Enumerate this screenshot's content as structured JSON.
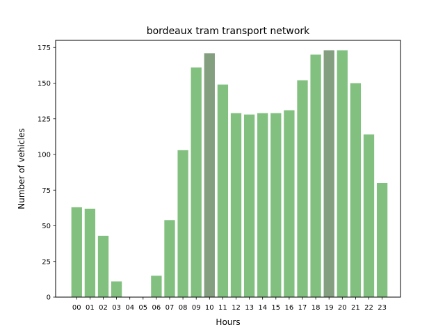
{
  "chart_data": {
    "type": "bar",
    "title": "bordeaux tram transport network",
    "xlabel": "Hours",
    "ylabel": "Number of vehicles",
    "ylim": [
      0,
      180
    ],
    "yticks": [
      0,
      25,
      50,
      75,
      100,
      125,
      150,
      175
    ],
    "grid": false,
    "legend": "none",
    "categories": [
      "00",
      "01",
      "02",
      "03",
      "04",
      "05",
      "06",
      "07",
      "08",
      "09",
      "10",
      "11",
      "12",
      "13",
      "14",
      "15",
      "16",
      "17",
      "18",
      "19",
      "20",
      "21",
      "22",
      "23"
    ],
    "values": [
      63,
      62,
      43,
      11,
      0,
      0,
      15,
      54,
      103,
      161,
      171,
      149,
      129,
      128,
      129,
      129,
      131,
      152,
      170,
      173,
      173,
      150,
      114,
      80
    ],
    "highlighted": [
      "10",
      "19"
    ],
    "colors": {
      "bar": "#81c07f",
      "highlight": "#849e80",
      "axis": "#000000"
    }
  }
}
